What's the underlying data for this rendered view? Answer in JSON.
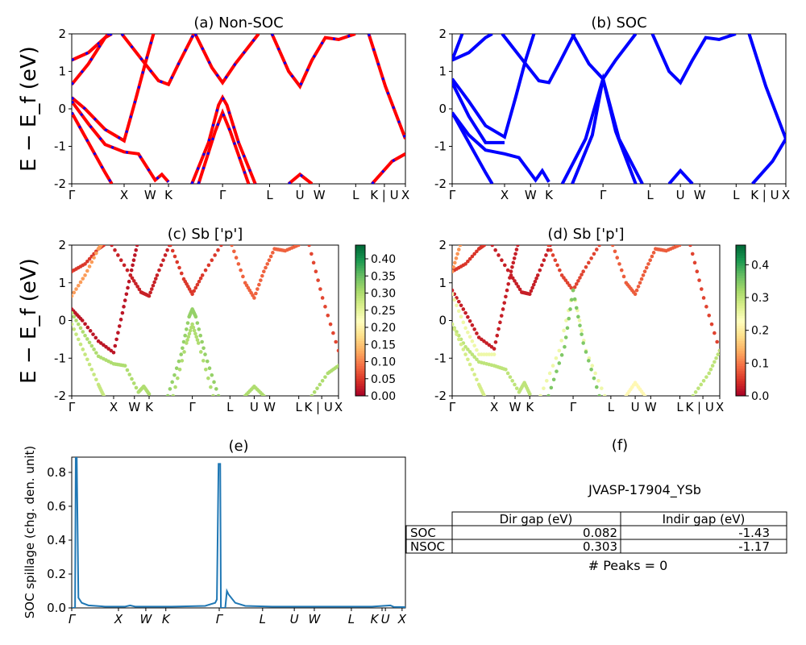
{
  "kpath_ticks": [
    "Γ",
    "X",
    "W",
    "K",
    "Γ",
    "L",
    "U",
    "W",
    "L",
    "K | U",
    "X"
  ],
  "kpath_tick_positions": [
    0,
    0.157,
    0.235,
    0.29,
    0.452,
    0.593,
    0.684,
    0.742,
    0.851,
    0.937,
    1.0
  ],
  "ylabel": "E − E_f (eV)",
  "colors": {
    "nonsoc_line": "#ff0000",
    "nonsoc_dash": "#0000ff",
    "soc_line": "#0000ff",
    "spillage": "#1f77b4"
  },
  "chart_data": [
    {
      "panel": "a",
      "type": "line",
      "title": "(a) Non-SOC",
      "ylim": [
        -2,
        2
      ],
      "yticks": [
        -2,
        -1,
        0,
        1,
        2
      ],
      "bands": [
        [
          [
            0,
            0.3
          ],
          [
            0.04,
            0
          ],
          [
            0.1,
            -0.55
          ],
          [
            0.157,
            -0.85
          ],
          [
            0.19,
            0.2
          ],
          [
            0.22,
            1.2
          ],
          [
            0.245,
            2
          ]
        ],
        [
          [
            0,
            0.2
          ],
          [
            0.05,
            -0.4
          ],
          [
            0.1,
            -0.95
          ],
          [
            0.157,
            -1.15
          ],
          [
            0.2,
            -1.2
          ],
          [
            0.25,
            -1.9
          ],
          [
            0.27,
            -1.75
          ],
          [
            0.29,
            -1.95
          ]
        ],
        [
          [
            0,
            -0.1
          ],
          [
            0.05,
            -0.9
          ],
          [
            0.1,
            -1.7
          ],
          [
            0.12,
            -2
          ]
        ],
        [
          [
            0,
            1.3
          ],
          [
            0.05,
            1.5
          ],
          [
            0.1,
            1.9
          ],
          [
            0.12,
            2
          ]
        ],
        [
          [
            0,
            0.65
          ],
          [
            0.05,
            1.2
          ],
          [
            0.1,
            1.9
          ],
          [
            0.11,
            2
          ]
        ],
        [
          [
            0.15,
            2
          ],
          [
            0.22,
            1.2
          ],
          [
            0.26,
            0.75
          ],
          [
            0.29,
            0.65
          ],
          [
            0.32,
            1.2
          ],
          [
            0.366,
            2
          ]
        ],
        [
          [
            0.37,
            2
          ],
          [
            0.42,
            1.1
          ],
          [
            0.452,
            0.7
          ],
          [
            0.49,
            1.2
          ],
          [
            0.56,
            2
          ]
        ],
        [
          [
            0.36,
            -2
          ],
          [
            0.41,
            -0.9
          ],
          [
            0.44,
            0.1
          ],
          [
            0.452,
            0.3
          ],
          [
            0.465,
            0.1
          ],
          [
            0.5,
            -0.9
          ],
          [
            0.55,
            -2
          ]
        ],
        [
          [
            0.38,
            -2
          ],
          [
            0.43,
            -0.6
          ],
          [
            0.452,
            -0.1
          ],
          [
            0.475,
            -0.6
          ],
          [
            0.53,
            -2
          ]
        ],
        [
          [
            0.6,
            2
          ],
          [
            0.65,
            1.0
          ],
          [
            0.684,
            0.6
          ],
          [
            0.72,
            1.3
          ],
          [
            0.76,
            1.9
          ],
          [
            0.8,
            1.85
          ],
          [
            0.85,
            2
          ]
        ],
        [
          [
            0.65,
            -2
          ],
          [
            0.684,
            -1.75
          ],
          [
            0.72,
            -2
          ]
        ],
        [
          [
            0.89,
            2
          ],
          [
            0.94,
            0.6
          ],
          [
            1.0,
            -0.8
          ]
        ],
        [
          [
            0.9,
            -2
          ],
          [
            0.96,
            -1.4
          ],
          [
            1.0,
            -1.2
          ]
        ]
      ]
    },
    {
      "panel": "b",
      "type": "line",
      "title": "(b) SOC",
      "ylim": [
        -2,
        2
      ],
      "yticks": [
        -2,
        -1,
        0,
        1,
        2
      ],
      "bands": [
        [
          [
            0,
            0.8
          ],
          [
            0.05,
            0.2
          ],
          [
            0.1,
            -0.45
          ],
          [
            0.157,
            -0.75
          ],
          [
            0.19,
            0.3
          ],
          [
            0.22,
            1.3
          ],
          [
            0.245,
            2
          ]
        ],
        [
          [
            0,
            -0.1
          ],
          [
            0.05,
            -0.7
          ],
          [
            0.1,
            -1.1
          ],
          [
            0.157,
            -1.2
          ],
          [
            0.2,
            -1.3
          ],
          [
            0.25,
            -1.9
          ],
          [
            0.27,
            -1.65
          ],
          [
            0.29,
            -1.95
          ]
        ],
        [
          [
            0,
            -0.1
          ],
          [
            0.05,
            -0.9
          ],
          [
            0.1,
            -1.7
          ],
          [
            0.12,
            -2
          ]
        ],
        [
          [
            0,
            0.7
          ],
          [
            0.05,
            -0.2
          ],
          [
            0.1,
            -0.9
          ],
          [
            0.157,
            -0.9
          ]
        ],
        [
          [
            0,
            1.3
          ],
          [
            0.05,
            1.5
          ],
          [
            0.1,
            1.9
          ],
          [
            0.12,
            2
          ]
        ],
        [
          [
            0,
            1.3
          ],
          [
            0.03,
            2
          ]
        ],
        [
          [
            0.15,
            2
          ],
          [
            0.22,
            1.2
          ],
          [
            0.26,
            0.75
          ],
          [
            0.29,
            0.7
          ],
          [
            0.32,
            1.2
          ],
          [
            0.366,
            2
          ]
        ],
        [
          [
            0.36,
            2
          ],
          [
            0.41,
            1.2
          ],
          [
            0.452,
            0.8
          ],
          [
            0.49,
            1.3
          ],
          [
            0.55,
            2
          ]
        ],
        [
          [
            0.33,
            -2
          ],
          [
            0.4,
            -0.8
          ],
          [
            0.452,
            0.8
          ],
          [
            0.5,
            -0.8
          ],
          [
            0.57,
            -2
          ]
        ],
        [
          [
            0.36,
            -2
          ],
          [
            0.42,
            -0.7
          ],
          [
            0.452,
            0.8
          ],
          [
            0.49,
            -0.6
          ],
          [
            0.55,
            -2
          ]
        ],
        [
          [
            0.6,
            2
          ],
          [
            0.65,
            1.0
          ],
          [
            0.684,
            0.7
          ],
          [
            0.72,
            1.3
          ],
          [
            0.76,
            1.9
          ],
          [
            0.8,
            1.85
          ],
          [
            0.85,
            2
          ]
        ],
        [
          [
            0.65,
            -2
          ],
          [
            0.684,
            -1.65
          ],
          [
            0.72,
            -2
          ]
        ],
        [
          [
            0.89,
            2
          ],
          [
            0.94,
            0.6
          ],
          [
            1.0,
            -0.8
          ]
        ],
        [
          [
            0.9,
            -2
          ],
          [
            0.96,
            -1.4
          ],
          [
            1.0,
            -0.8
          ]
        ]
      ]
    },
    {
      "panel": "c",
      "type": "scatter",
      "title": "(c)  Sb ['p']",
      "ylim": [
        -2,
        2
      ],
      "yticks": [
        -2,
        -1,
        0,
        1,
        2
      ],
      "colorbar": {
        "range": [
          0,
          0.44
        ],
        "ticks": [
          "0.00",
          "0.05",
          "0.10",
          "0.15",
          "0.20",
          "0.25",
          "0.30",
          "0.35",
          "0.40"
        ],
        "tick_values": [
          0,
          0.05,
          0.1,
          0.15,
          0.2,
          0.25,
          0.3,
          0.35,
          0.4
        ],
        "colormap": "RdYlGn"
      },
      "bands_ref": "a",
      "band_weights": [
        0.02,
        0.3,
        0.28,
        0.05,
        0.12,
        0.03,
        0.05,
        0.32,
        0.3,
        0.08,
        0.3,
        0.06,
        0.3
      ]
    },
    {
      "panel": "d",
      "type": "scatter",
      "title": "(d) Sb ['p']",
      "ylim": [
        -2,
        2
      ],
      "yticks": [
        -2,
        -1,
        0,
        1,
        2
      ],
      "colorbar": {
        "range": [
          0,
          0.46
        ],
        "ticks": [
          "0.0",
          "0.1",
          "0.2",
          "0.3",
          "0.4"
        ],
        "tick_values": [
          0,
          0.1,
          0.2,
          0.3,
          0.4
        ],
        "colormap": "RdYlGn"
      },
      "bands_ref": "b",
      "band_weights": [
        0.03,
        0.3,
        0.28,
        0.25,
        0.05,
        0.12,
        0.03,
        0.06,
        0.25,
        0.35,
        0.08,
        0.22,
        0.06,
        0.3
      ]
    },
    {
      "panel": "e",
      "type": "line",
      "title": "(e)",
      "ylabel": "SOC spillage (chg. den. unit)",
      "ylim": [
        0,
        0.89
      ],
      "yticks": [
        "0.0",
        "0.2",
        "0.4",
        "0.6",
        "0.8"
      ],
      "ytick_values": [
        0,
        0.2,
        0.4,
        0.6,
        0.8
      ],
      "xticks": [
        "Γ",
        "X",
        "W",
        "K",
        "Γ",
        "L",
        "U",
        "W",
        "L",
        "K",
        "U",
        "X"
      ],
      "xtick_positions": [
        0,
        0.14,
        0.222,
        0.282,
        0.442,
        0.572,
        0.667,
        0.727,
        0.838,
        0.93,
        0.94,
        0.99
      ],
      "x": [
        0,
        0.01,
        0.012,
        0.015,
        0.02,
        0.03,
        0.05,
        0.1,
        0.16,
        0.175,
        0.19,
        0.3,
        0.4,
        0.43,
        0.435,
        0.44,
        0.445,
        0.447,
        0.46,
        0.465,
        0.47,
        0.49,
        0.52,
        0.6,
        0.7,
        0.9,
        0.955,
        0.965,
        1.0
      ],
      "y": [
        0,
        0,
        0.89,
        0.89,
        0.06,
        0.03,
        0.015,
        0.008,
        0.008,
        0.015,
        0.008,
        0.008,
        0.012,
        0.03,
        0.05,
        0.85,
        0.85,
        0,
        0,
        0.1,
        0.08,
        0.03,
        0.012,
        0.008,
        0.008,
        0.008,
        0.015,
        0.006,
        0.005
      ]
    }
  ],
  "panel_f": {
    "title": "(f)",
    "material": "JVASP-17904_YSb",
    "table": {
      "columns": [
        "Dir gap (eV)",
        "Indir gap (eV)"
      ],
      "rows": [
        {
          "label": "SOC",
          "values": [
            "0.082",
            "-1.43"
          ]
        },
        {
          "label": "NSOC",
          "values": [
            "0.303",
            "-1.17"
          ]
        }
      ]
    },
    "peaks": "# Peaks = 0"
  }
}
